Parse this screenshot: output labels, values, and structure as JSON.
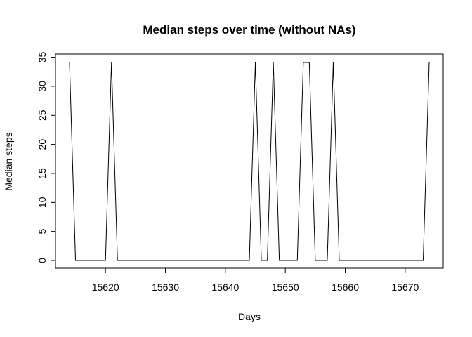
{
  "chart_data": {
    "type": "line",
    "title": "Median steps over time (without NAs)",
    "xlabel": "Days",
    "ylabel": "Median steps",
    "xlim": [
      15614,
      15674
    ],
    "ylim": [
      0,
      34.1
    ],
    "x_ticks": [
      15620,
      15630,
      15640,
      15650,
      15660,
      15670
    ],
    "y_ticks": [
      0,
      5,
      10,
      15,
      20,
      25,
      30,
      35
    ],
    "grid": false,
    "legend": "none",
    "line_color": "#000000",
    "x": [
      15614,
      15615,
      15616,
      15617,
      15618,
      15619,
      15620,
      15621,
      15622,
      15623,
      15624,
      15625,
      15626,
      15627,
      15628,
      15629,
      15630,
      15631,
      15632,
      15633,
      15634,
      15635,
      15636,
      15637,
      15638,
      15639,
      15640,
      15641,
      15642,
      15643,
      15644,
      15645,
      15646,
      15647,
      15648,
      15649,
      15650,
      15651,
      15652,
      15653,
      15654,
      15655,
      15656,
      15657,
      15658,
      15659,
      15660,
      15661,
      15662,
      15663,
      15664,
      15665,
      15666,
      15667,
      15668,
      15669,
      15670,
      15671,
      15672,
      15673,
      15674
    ],
    "y": [
      34.1,
      0,
      0,
      0,
      0,
      0,
      0,
      34.1,
      0,
      0,
      0,
      0,
      0,
      0,
      0,
      0,
      0,
      0,
      0,
      0,
      0,
      0,
      0,
      0,
      0,
      0,
      0,
      0,
      0,
      0,
      0,
      34.1,
      0,
      0,
      34.1,
      0,
      0,
      0,
      0,
      34.1,
      34.1,
      0,
      0,
      0,
      34.1,
      0,
      0,
      0,
      0,
      0,
      0,
      0,
      0,
      0,
      0,
      0,
      0,
      0,
      0,
      0,
      34.1
    ]
  }
}
